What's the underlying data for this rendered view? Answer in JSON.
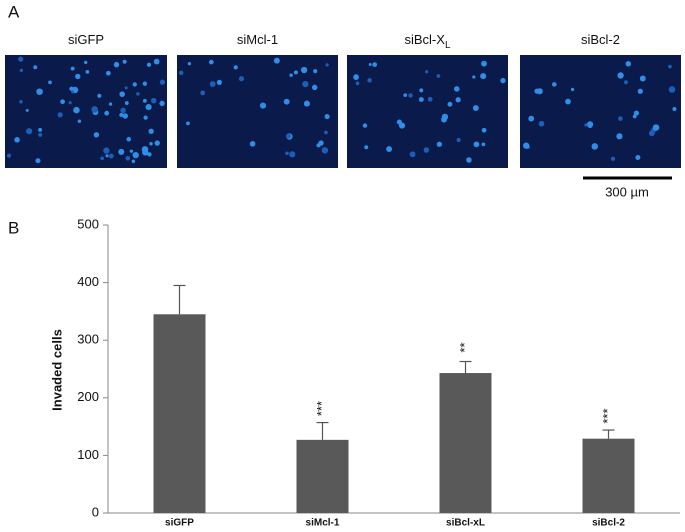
{
  "panel_a": {
    "label": "A",
    "images": [
      {
        "label": "siGFP"
      },
      {
        "label": "siMcl-1"
      },
      {
        "label": "siBcl-X",
        "subscript": "L"
      },
      {
        "label": "siBcl-2"
      }
    ],
    "scale_bar": "300 µm"
  },
  "panel_b": {
    "label": "B"
  },
  "chart_data": {
    "type": "bar",
    "y_label": "Invaded cells",
    "categories": [
      "siGFP",
      "siMcl-1",
      "siBcl-xL",
      "siBcl-2"
    ],
    "values": [
      345,
      127,
      243,
      129
    ],
    "errors": [
      50,
      30,
      20,
      15
    ],
    "significance": [
      null,
      "***",
      "**",
      "***"
    ],
    "color": "#595959",
    "ylim": [
      0,
      500
    ],
    "yticks": [
      0,
      100,
      200,
      300,
      400,
      500
    ]
  }
}
